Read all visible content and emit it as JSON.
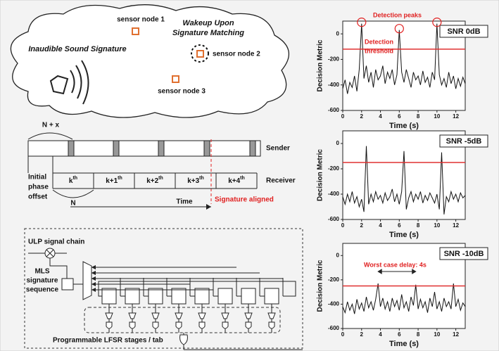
{
  "cloud": {
    "signature": "Inaudible Sound Signature",
    "wakeup": [
      "Wakeup Upon",
      "Signature Matching"
    ],
    "nodes": [
      "sensor node 1",
      "sensor node 2",
      "sensor node 3"
    ]
  },
  "timing": {
    "period": "N + x",
    "sender": "Sender",
    "receiver": "Receiver",
    "offset": [
      "Initial",
      "phase",
      "offset"
    ],
    "n": "N",
    "time": "Time",
    "aligned": "Signature aligned",
    "slots": [
      {
        "base": "k",
        "sup": "th"
      },
      {
        "base": "k+1",
        "sup": "th"
      },
      {
        "base": "k+2",
        "sup": "th"
      },
      {
        "base": "k+3",
        "sup": "th"
      },
      {
        "base": "k+4",
        "sup": "th"
      }
    ]
  },
  "lfsr": {
    "chain": "ULP signal chain",
    "mls": [
      "MLS",
      "signature",
      "sequence"
    ],
    "stages": "Programmable LFSR stages / tab"
  },
  "chart_data": [
    {
      "type": "line",
      "label": "SNR 0dB",
      "x_label": "Time (s)",
      "y_label": "Decision Metric",
      "color": "#111111",
      "threshold": -120,
      "threshold_color": "#e03030",
      "annotations": [
        "Detection peaks",
        "Detection",
        "threshold"
      ],
      "xlim": [
        0,
        13
      ],
      "xticks": [
        0,
        2,
        4,
        6,
        8,
        10,
        12
      ],
      "ylim": [
        -600,
        100
      ],
      "yticks": [
        -600,
        -400,
        -200,
        0
      ],
      "x": [
        0,
        0.25,
        0.5,
        0.75,
        1,
        1.25,
        1.5,
        1.75,
        2,
        2.25,
        2.5,
        2.75,
        3,
        3.25,
        3.5,
        3.75,
        4,
        4.25,
        4.5,
        4.75,
        5,
        5.25,
        5.5,
        5.75,
        6,
        6.25,
        6.5,
        6.75,
        7,
        7.25,
        7.5,
        7.75,
        8,
        8.25,
        8.5,
        8.75,
        9,
        9.25,
        9.5,
        9.75,
        10,
        10.25,
        10.5,
        10.75,
        11,
        11.25,
        11.5,
        11.75,
        12,
        12.25,
        12.5,
        12.75,
        13
      ],
      "values": [
        -430,
        -360,
        -470,
        -380,
        -420,
        -330,
        -450,
        -280,
        80,
        -350,
        -250,
        -380,
        -300,
        -420,
        -280,
        -360,
        -330,
        -250,
        -390,
        -300,
        -350,
        -280,
        -400,
        -320,
        30,
        -300,
        -380,
        -280,
        -350,
        -420,
        -300,
        -360,
        -330,
        -400,
        -290,
        -380,
        -340,
        -420,
        -300,
        -360,
        80,
        -320,
        -400,
        -350,
        -420,
        -300,
        -390,
        -330,
        -430,
        -350,
        -410,
        -340,
        -390
      ]
    },
    {
      "type": "line",
      "label": "SNR -5dB",
      "x_label": "Time (s)",
      "y_label": "Decision Metric",
      "color": "#111111",
      "threshold": -150,
      "threshold_color": "#e03030",
      "xlim": [
        0,
        13
      ],
      "xticks": [
        0,
        2,
        4,
        6,
        8,
        10,
        12
      ],
      "ylim": [
        -600,
        100
      ],
      "yticks": [
        -600,
        -400,
        -200,
        0
      ],
      "x": [
        0,
        0.25,
        0.5,
        0.75,
        1,
        1.25,
        1.5,
        1.75,
        2,
        2.25,
        2.5,
        2.75,
        3,
        3.25,
        3.5,
        3.75,
        4,
        4.25,
        4.5,
        4.75,
        5,
        5.25,
        5.5,
        5.75,
        6,
        6.25,
        6.5,
        6.75,
        7,
        7.25,
        7.5,
        7.75,
        8,
        8.25,
        8.5,
        8.75,
        9,
        9.25,
        9.5,
        9.75,
        10,
        10.25,
        10.5,
        10.75,
        11,
        11.25,
        11.5,
        11.75,
        12,
        12.25,
        12.5,
        12.75,
        13
      ],
      "values": [
        -420,
        -480,
        -400,
        -460,
        -380,
        -470,
        -420,
        -500,
        -440,
        -540,
        -20,
        -480,
        -400,
        -460,
        -380,
        -440,
        -410,
        -470,
        -390,
        -450,
        -420,
        -360,
        -460,
        -400,
        -480,
        -380,
        -60,
        -520,
        -430,
        -380,
        -460,
        -400,
        -440,
        -380,
        -470,
        -410,
        -450,
        -390,
        -430,
        -470,
        -400,
        -520,
        -70,
        -560,
        -420,
        -460,
        -380,
        -440,
        -400,
        -460,
        -390,
        -430,
        -410
      ]
    },
    {
      "type": "line",
      "label": "SNR -10dB",
      "x_label": "Time (s)",
      "y_label": "Decision Metric",
      "color": "#111111",
      "threshold": -250,
      "threshold_color": "#e03030",
      "annotations": [
        "Worst case delay: 4s"
      ],
      "xlim": [
        0,
        13
      ],
      "xticks": [
        0,
        2,
        4,
        6,
        8,
        10,
        12
      ],
      "ylim": [
        -600,
        100
      ],
      "yticks": [
        -600,
        -400,
        -200,
        0
      ],
      "x": [
        0,
        0.25,
        0.5,
        0.75,
        1,
        1.25,
        1.5,
        1.75,
        2,
        2.25,
        2.5,
        2.75,
        3,
        3.25,
        3.5,
        3.75,
        4,
        4.25,
        4.5,
        4.75,
        5,
        5.25,
        5.5,
        5.75,
        6,
        6.25,
        6.5,
        6.75,
        7,
        7.25,
        7.5,
        7.75,
        8,
        8.25,
        8.5,
        8.75,
        9,
        9.25,
        9.5,
        9.75,
        10,
        10.25,
        10.5,
        10.75,
        11,
        11.25,
        11.5,
        11.75,
        12,
        12.25,
        12.5,
        12.75,
        13
      ],
      "values": [
        -420,
        -470,
        -380,
        -450,
        -400,
        -480,
        -360,
        -440,
        -390,
        -460,
        -340,
        -430,
        -380,
        -450,
        -360,
        -230,
        -420,
        -350,
        -440,
        -380,
        -460,
        -350,
        -420,
        -370,
        -450,
        -320,
        -430,
        -380,
        -460,
        -340,
        -410,
        -240,
        -440,
        -360,
        -430,
        -380,
        -470,
        -350,
        -420,
        -300,
        -440,
        -380,
        -460,
        -350,
        -420,
        -380,
        -440,
        -230,
        -420,
        -360,
        -450,
        -390,
        -420
      ]
    }
  ]
}
